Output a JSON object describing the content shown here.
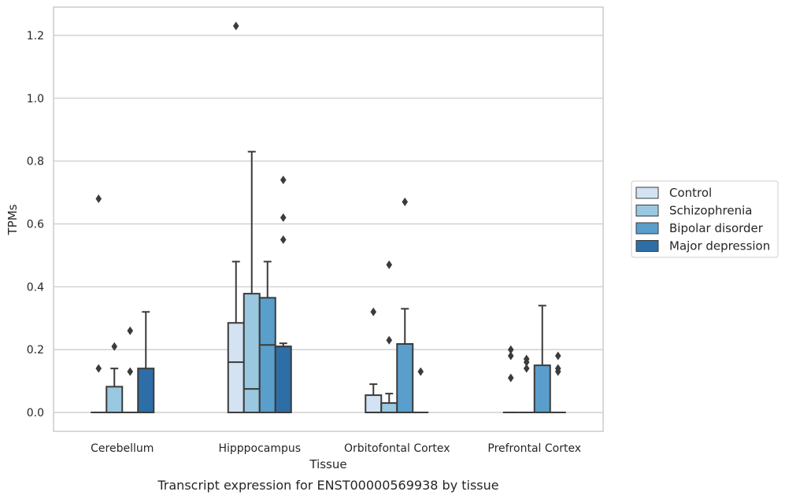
{
  "chart_data": {
    "type": "box",
    "title": "",
    "caption": "Transcript expression for ENST00000569938 by tissue",
    "xlabel": "Tissue",
    "ylabel": "TPMs",
    "ylim": [
      -0.06,
      1.29
    ],
    "yticks": [
      0.0,
      0.2,
      0.4,
      0.6,
      0.8,
      1.0,
      1.2
    ],
    "ytick_labels": [
      "0.0",
      "0.2",
      "0.4",
      "0.6",
      "0.8",
      "1.0",
      "1.2"
    ],
    "grid": "horizontal",
    "legend_position": "right",
    "categories": [
      "Cerebellum",
      "Hipppocampus",
      "Orbitofontal Cortex",
      "Prefrontal Cortex"
    ],
    "series": [
      {
        "name": "Control",
        "color": "#d3e3f3",
        "boxes": [
          {
            "q1": 0,
            "median": 0,
            "q3": 0,
            "whisker_low": 0,
            "whisker_high": 0,
            "outliers": [
              0.68,
              0.14
            ]
          },
          {
            "q1": 0,
            "median": 0.16,
            "q3": 0.285,
            "whisker_low": 0,
            "whisker_high": 0.48,
            "outliers": [
              1.23
            ]
          },
          {
            "q1": 0,
            "median": 0,
            "q3": 0.055,
            "whisker_low": 0,
            "whisker_high": 0.09,
            "outliers": [
              0.32
            ]
          },
          {
            "q1": 0,
            "median": 0,
            "q3": 0,
            "whisker_low": 0,
            "whisker_high": 0,
            "outliers": [
              0.2,
              0.18,
              0.11
            ]
          }
        ]
      },
      {
        "name": "Schizophrenia",
        "color": "#9ac8e0",
        "boxes": [
          {
            "q1": 0,
            "median": 0,
            "q3": 0.082,
            "whisker_low": 0,
            "whisker_high": 0.14,
            "outliers": [
              0.21
            ]
          },
          {
            "q1": 0,
            "median": 0.075,
            "q3": 0.378,
            "whisker_low": 0,
            "whisker_high": 0.83,
            "outliers": []
          },
          {
            "q1": 0,
            "median": 0,
            "q3": 0.03,
            "whisker_low": 0,
            "whisker_high": 0.06,
            "outliers": [
              0.47,
              0.23
            ]
          },
          {
            "q1": 0,
            "median": 0,
            "q3": 0,
            "whisker_low": 0,
            "whisker_high": 0,
            "outliers": [
              0.17,
              0.16,
              0.14
            ]
          }
        ]
      },
      {
        "name": "Bipolar disorder",
        "color": "#5a9ecc",
        "boxes": [
          {
            "q1": 0,
            "median": 0,
            "q3": 0,
            "whisker_low": 0,
            "whisker_high": 0,
            "outliers": [
              0.26,
              0.13
            ]
          },
          {
            "q1": 0,
            "median": 0.215,
            "q3": 0.365,
            "whisker_low": 0,
            "whisker_high": 0.48,
            "outliers": []
          },
          {
            "q1": 0,
            "median": 0,
            "q3": 0.218,
            "whisker_low": 0,
            "whisker_high": 0.33,
            "outliers": [
              0.67
            ]
          },
          {
            "q1": 0,
            "median": 0,
            "q3": 0.15,
            "whisker_low": 0,
            "whisker_high": 0.34,
            "outliers": []
          }
        ]
      },
      {
        "name": "Major depression",
        "color": "#2d6ea6",
        "boxes": [
          {
            "q1": 0,
            "median": 0,
            "q3": 0.14,
            "whisker_low": 0,
            "whisker_high": 0.32,
            "outliers": []
          },
          {
            "q1": 0,
            "median": 0.21,
            "q3": 0.21,
            "whisker_low": 0,
            "whisker_high": 0.22,
            "outliers": [
              0.74,
              0.62,
              0.55
            ]
          },
          {
            "q1": 0,
            "median": 0,
            "q3": 0,
            "whisker_low": 0,
            "whisker_high": 0,
            "outliers": [
              0.13
            ]
          },
          {
            "q1": 0,
            "median": 0,
            "q3": 0,
            "whisker_low": 0,
            "whisker_high": 0,
            "outliers": [
              0.18,
              0.14,
              0.13
            ]
          }
        ]
      }
    ]
  }
}
